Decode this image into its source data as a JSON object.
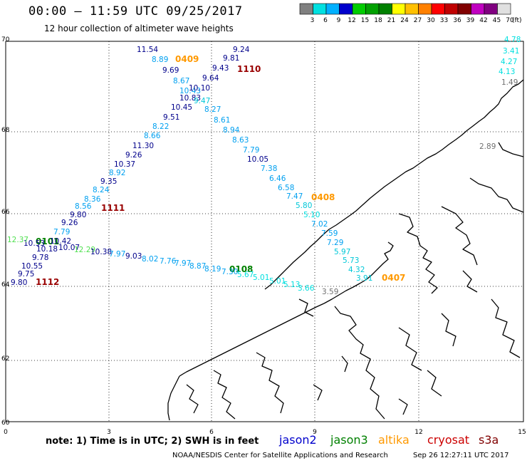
{
  "header": {
    "title": "00:00 — 11:59 UTC 09/25/2017",
    "subtitle": "12 hour collection of altimeter wave heights"
  },
  "colorbar": {
    "labels": [
      "3",
      "6",
      "9",
      "12",
      "15",
      "18",
      "21",
      "24",
      "27",
      "30",
      "33",
      "36",
      "39",
      "42",
      "45",
      "70"
    ],
    "unit": "(ft)",
    "colors": [
      "#808080",
      "#00e0e0",
      "#00b0ff",
      "#0000cc",
      "#00cc00",
      "#00a000",
      "#008000",
      "#ffff00",
      "#ffc000",
      "#ff8000",
      "#ff0000",
      "#c00000",
      "#800000",
      "#c000c0",
      "#800080",
      "#e0e0e0"
    ]
  },
  "axes": {
    "y_ticks": [
      "70",
      "68",
      "66",
      "64",
      "62",
      "60"
    ],
    "x_ticks": [
      "0",
      "3",
      "6",
      "9",
      "12",
      "15"
    ]
  },
  "colors": {
    "jason2": "#0000cc",
    "jason3": "#008000",
    "altika": "#ff9900",
    "cryosat": "#cc0000",
    "s3a": "#800000",
    "cyan": "#00c8d8",
    "sky": "#00a0f0",
    "navy": "#00008b",
    "gray": "#707070",
    "lgreen": "#50e050",
    "lcyan": "#00dfdf"
  },
  "track_labels": [
    {
      "text": "0409",
      "color": "#ff9900"
    },
    {
      "text": "1110",
      "color": "#990000"
    },
    {
      "text": "1111",
      "color": "#990000"
    },
    {
      "text": "0101",
      "color": "#008000"
    },
    {
      "text": "1112",
      "color": "#990000"
    },
    {
      "text": "0408",
      "color": "#ff9900"
    },
    {
      "text": "0108",
      "color": "#008000"
    },
    {
      "text": "0407",
      "color": "#ff9900"
    }
  ],
  "values": [
    {
      "text": "11.54",
      "c": "navy"
    },
    {
      "text": "8.89",
      "c": "sky"
    },
    {
      "text": "9.69",
      "c": "navy"
    },
    {
      "text": "8.67",
      "c": "sky"
    },
    {
      "text": "10.43",
      "c": "sky"
    },
    {
      "text": "10.10",
      "c": "navy"
    },
    {
      "text": "10.83",
      "c": "navy"
    },
    {
      "text": "9.47",
      "c": "cyan"
    },
    {
      "text": "10.45",
      "c": "navy"
    },
    {
      "text": "9.51",
      "c": "navy"
    },
    {
      "text": "8.22",
      "c": "sky"
    },
    {
      "text": "8.66",
      "c": "sky"
    },
    {
      "text": "11.30",
      "c": "navy"
    },
    {
      "text": "9.26",
      "c": "navy"
    },
    {
      "text": "10.37",
      "c": "navy"
    },
    {
      "text": "8.92",
      "c": "sky"
    },
    {
      "text": "9.35",
      "c": "navy"
    },
    {
      "text": "8.24",
      "c": "sky"
    },
    {
      "text": "8.36",
      "c": "sky"
    },
    {
      "text": "8.56",
      "c": "sky"
    },
    {
      "text": "9.80",
      "c": "navy"
    },
    {
      "text": "9.26",
      "c": "navy"
    },
    {
      "text": "7.79",
      "c": "sky"
    },
    {
      "text": "10.53",
      "c": "navy"
    },
    {
      "text": "10.42",
      "c": "navy"
    },
    {
      "text": "10.18",
      "c": "navy"
    },
    {
      "text": "10.07",
      "c": "navy"
    },
    {
      "text": "9.78",
      "c": "navy"
    },
    {
      "text": "10.55",
      "c": "navy"
    },
    {
      "text": "9.75",
      "c": "navy"
    },
    {
      "text": "9.80",
      "c": "navy"
    },
    {
      "text": "12.37",
      "c": "lgreen"
    },
    {
      "text": "12.29",
      "c": "lgreen"
    },
    {
      "text": "10.38",
      "c": "navy"
    },
    {
      "text": "7.97",
      "c": "sky"
    },
    {
      "text": "9.03",
      "c": "navy"
    },
    {
      "text": "8.02",
      "c": "sky"
    },
    {
      "text": "7.76",
      "c": "sky"
    },
    {
      "text": "7.97",
      "c": "sky"
    },
    {
      "text": "8.87",
      "c": "sky"
    },
    {
      "text": "8.19",
      "c": "sky"
    },
    {
      "text": "7.30",
      "c": "sky"
    },
    {
      "text": "5.67",
      "c": "lcyan"
    },
    {
      "text": "5.01",
      "c": "lcyan"
    },
    {
      "text": "5.01",
      "c": "lcyan"
    },
    {
      "text": "5.13",
      "c": "lcyan"
    },
    {
      "text": "3.66",
      "c": "lcyan"
    },
    {
      "text": "3.59",
      "c": "gray"
    },
    {
      "text": "9.24",
      "c": "navy"
    },
    {
      "text": "9.81",
      "c": "navy"
    },
    {
      "text": "9.43",
      "c": "navy"
    },
    {
      "text": "9.64",
      "c": "navy"
    },
    {
      "text": "8.27",
      "c": "sky"
    },
    {
      "text": "8.61",
      "c": "sky"
    },
    {
      "text": "8.94",
      "c": "sky"
    },
    {
      "text": "8.63",
      "c": "sky"
    },
    {
      "text": "7.79",
      "c": "sky"
    },
    {
      "text": "10.05",
      "c": "navy"
    },
    {
      "text": "7.38",
      "c": "sky"
    },
    {
      "text": "6.46",
      "c": "sky"
    },
    {
      "text": "6.58",
      "c": "sky"
    },
    {
      "text": "7.47",
      "c": "sky"
    },
    {
      "text": "5.80",
      "c": "cyan"
    },
    {
      "text": "5.10",
      "c": "lcyan"
    },
    {
      "text": "7.02",
      "c": "sky"
    },
    {
      "text": "7.59",
      "c": "sky"
    },
    {
      "text": "7.29",
      "c": "sky"
    },
    {
      "text": "5.97",
      "c": "cyan"
    },
    {
      "text": "5.73",
      "c": "cyan"
    },
    {
      "text": "4.32",
      "c": "cyan"
    },
    {
      "text": "3.91",
      "c": "cyan"
    },
    {
      "text": "4.78",
      "c": "lcyan"
    },
    {
      "text": "3.41",
      "c": "lcyan"
    },
    {
      "text": "4.27",
      "c": "lcyan"
    },
    {
      "text": "4.13",
      "c": "lcyan"
    },
    {
      "text": "1.49",
      "c": "gray"
    },
    {
      "text": "2.89",
      "c": "gray"
    }
  ],
  "footer": {
    "note": "note: 1) Time is in UTC; 2) SWH is in feet",
    "sats": [
      "jason2",
      "jason3",
      "altika",
      "cryosat",
      "s3a"
    ],
    "credit": "NOAA/NESDIS Center for Satellite Applications and Research",
    "timestamp": "Sep 26 12:27:11 UTC 2017"
  }
}
